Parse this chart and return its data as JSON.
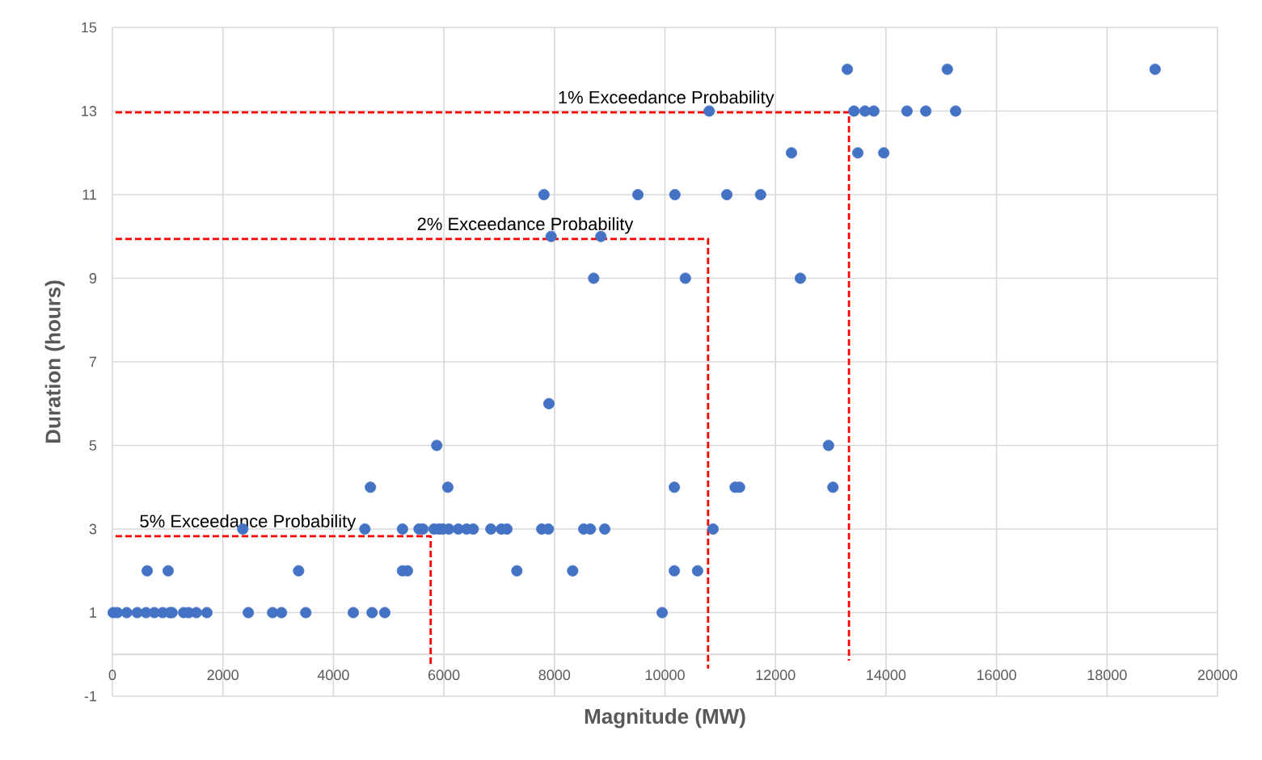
{
  "chart_data": {
    "type": "scatter",
    "xlabel": "Magnitude (MW)",
    "ylabel": "Duration (hours)",
    "grid": true,
    "xlim": [
      0,
      20000
    ],
    "xticks": [
      0,
      2000,
      4000,
      6000,
      8000,
      10000,
      12000,
      14000,
      16000,
      18000,
      20000
    ],
    "ylim": [
      -1,
      15
    ],
    "yticks": [
      -1,
      1,
      3,
      5,
      7,
      9,
      11,
      13,
      15
    ],
    "series": [
      {
        "color": "#4472c4",
        "marker": "circle",
        "x": [
          15,
          90,
          260,
          450,
          610,
          760,
          910,
          1040,
          1080,
          1290,
          1380,
          1520,
          1710,
          2460,
          2900,
          3060,
          3500,
          4360,
          4700,
          4930,
          9950,
          630,
          1010,
          3370,
          5250,
          5340,
          7320,
          8330,
          10170,
          10590,
          2360,
          4570,
          5250,
          5550,
          5620,
          5820,
          5910,
          5980,
          6090,
          6260,
          6410,
          6530,
          6850,
          7040,
          7140,
          7770,
          7890,
          8530,
          8650,
          8910,
          10870,
          4670,
          6070,
          10170,
          11270,
          11350,
          13040,
          5870,
          12960,
          7900,
          8710,
          10370,
          12450,
          7940,
          8840,
          7810,
          9510,
          10180,
          11120,
          11730,
          12290,
          13490,
          13960,
          10800,
          13420,
          13620,
          13780,
          14380,
          14720,
          15260,
          13300,
          15110,
          18870
        ],
        "values": [
          1,
          1,
          1,
          1,
          1,
          1,
          1,
          1,
          1,
          1,
          1,
          1,
          1,
          1,
          1,
          1,
          1,
          1,
          1,
          1,
          1,
          2,
          2,
          2,
          2,
          2,
          2,
          2,
          2,
          2,
          3,
          3,
          3,
          3,
          3,
          3,
          3,
          3,
          3,
          3,
          3,
          3,
          3,
          3,
          3,
          3,
          3,
          3,
          3,
          3,
          3,
          4,
          4,
          4,
          4,
          4,
          4,
          5,
          5,
          6,
          9,
          9,
          9,
          10,
          10,
          11,
          11,
          11,
          11,
          11,
          12,
          12,
          12,
          13,
          13,
          13,
          13,
          13,
          13,
          13,
          14,
          14,
          14
        ]
      },
      {
        "type": "line",
        "name": "5% Exceedance Probability",
        "color": "#ff0000",
        "marker": "none",
        "line_style": "dashed",
        "x": [
          0,
          5760,
          5760
        ],
        "values": [
          2.83,
          2.83,
          -0.29
        ]
      },
      {
        "type": "line",
        "name": "2% Exceedance Probability",
        "color": "#ff0000",
        "marker": "none",
        "line_style": "dashed",
        "x": [
          0,
          10780,
          10780
        ],
        "values": [
          9.94,
          9.94,
          -0.34
        ]
      },
      {
        "type": "line",
        "name": "1% Exceedance Probability",
        "color": "#ff0000",
        "marker": "none",
        "line_style": "dashed",
        "x": [
          0,
          13330,
          13330
        ],
        "values": [
          12.97,
          12.97,
          -0.15
        ]
      }
    ]
  }
}
